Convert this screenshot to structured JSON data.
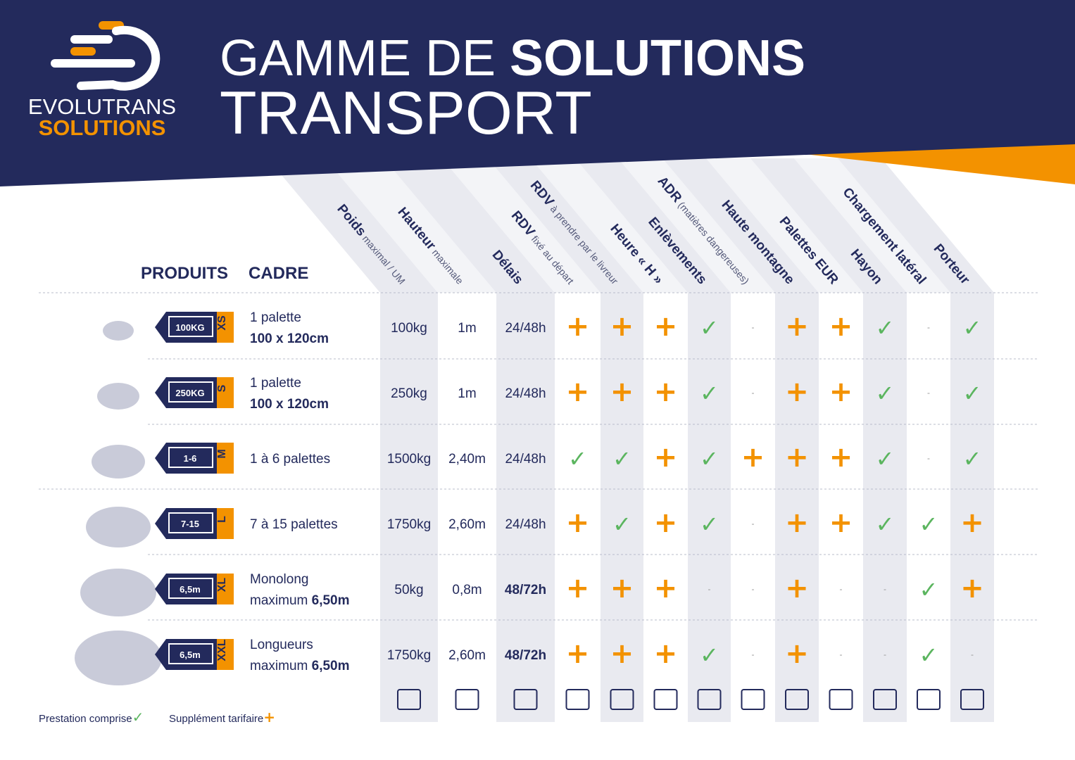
{
  "logo": {
    "line1": "EVOLUTRANS",
    "line2": "SOLUTIONS"
  },
  "header": {
    "title_light": "GAMME DE ",
    "title_bold": "SOLUTIONS",
    "title_line2": "TRANSPORT"
  },
  "table": {
    "headers": {
      "products": "PRODUITS",
      "frame": "CADRE"
    },
    "columns": [
      [
        {
          "text": "Poids",
          "bold": true
        },
        {
          "text": " maximal / UM",
          "bold": false
        }
      ],
      [
        {
          "text": "Hauteur",
          "bold": true
        },
        {
          "text": " maximale",
          "bold": false
        }
      ],
      [
        {
          "text": "Délais",
          "bold": true
        }
      ],
      [
        {
          "text": "RDV",
          "bold": true
        },
        {
          "text": " fixé au départ",
          "bold": false
        }
      ],
      [
        {
          "text": "RDV",
          "bold": true
        },
        {
          "text": " à prendre par le livreur",
          "bold": false
        }
      ],
      [
        {
          "text": "Heure « H »",
          "bold": true
        }
      ],
      [
        {
          "text": "Enlèvements",
          "bold": true
        }
      ],
      [
        {
          "text": "ADR",
          "bold": true
        },
        {
          "text": " (matières dangereuses)",
          "bold": false
        }
      ],
      [
        {
          "text": "Haute montagne",
          "bold": true
        }
      ],
      [
        {
          "text": "Palettes EUR",
          "bold": true
        }
      ],
      [
        {
          "text": "Hayon",
          "bold": true
        }
      ],
      [
        {
          "text": "Chargement latéral",
          "bold": true
        }
      ],
      [
        {
          "text": "Porteur",
          "bold": true
        }
      ]
    ],
    "rows": [
      {
        "tag": "100KG",
        "size": "XS",
        "frame": [
          [
            {
              "text": "1 palette",
              "bold": false
            }
          ],
          [
            {
              "text": "100 x 120cm",
              "bold": true
            }
          ]
        ],
        "bold_delay": false,
        "cells": [
          "100kg",
          "1m",
          "24/48h",
          "+",
          "+",
          "+",
          "✓",
          "-",
          "+",
          "+",
          "✓",
          "-",
          "✓"
        ]
      },
      {
        "tag": "250KG",
        "size": "S",
        "frame": [
          [
            {
              "text": "1 palette",
              "bold": false
            }
          ],
          [
            {
              "text": "100 x 120cm",
              "bold": true
            }
          ]
        ],
        "bold_delay": false,
        "cells": [
          "250kg",
          "1m",
          "24/48h",
          "+",
          "+",
          "+",
          "✓",
          "-",
          "+",
          "+",
          "✓",
          "-",
          "✓"
        ]
      },
      {
        "tag": "1-6",
        "size": "M",
        "frame": [
          [
            {
              "text": "1 à 6 palettes",
              "bold": false
            }
          ]
        ],
        "bold_delay": false,
        "cells": [
          "1500kg",
          "2,40m",
          "24/48h",
          "✓",
          "✓",
          "+",
          "✓",
          "+",
          "+",
          "+",
          "✓",
          "-",
          "✓"
        ]
      },
      {
        "tag": "7-15",
        "size": "L",
        "frame": [
          [
            {
              "text": "7 à 15 palettes",
              "bold": false
            }
          ]
        ],
        "bold_delay": false,
        "cells": [
          "1750kg",
          "2,60m",
          "24/48h",
          "+",
          "✓",
          "+",
          "✓",
          "-",
          "+",
          "+",
          "✓",
          "✓",
          "+"
        ]
      },
      {
        "tag": "6,5m",
        "size": "XL",
        "frame": [
          [
            {
              "text": "Monolong",
              "bold": false
            }
          ],
          [
            {
              "text": "maximum ",
              "bold": false
            },
            {
              "text": "6,50m",
              "bold": true
            }
          ]
        ],
        "bold_delay": true,
        "cells": [
          "50kg",
          "0,8m",
          "48/72h",
          "+",
          "+",
          "+",
          "-",
          "-",
          "+",
          "-",
          "-",
          "✓",
          "+"
        ]
      },
      {
        "tag": "6,5m",
        "size": "XXL",
        "frame": [
          [
            {
              "text": "Longueurs",
              "bold": false
            }
          ],
          [
            {
              "text": "maximum ",
              "bold": false
            },
            {
              "text": "6,50m",
              "bold": true
            }
          ]
        ],
        "bold_delay": true,
        "cells": [
          "1750kg",
          "2,60m",
          "48/72h",
          "+",
          "+",
          "+",
          "✓",
          "-",
          "+",
          "-",
          "-",
          "✓",
          "-"
        ]
      }
    ]
  },
  "legend": [
    {
      "text": "Prestation comprise",
      "symbol": "✓"
    },
    {
      "text": "Supplément tarifaire",
      "symbol": "+"
    }
  ]
}
